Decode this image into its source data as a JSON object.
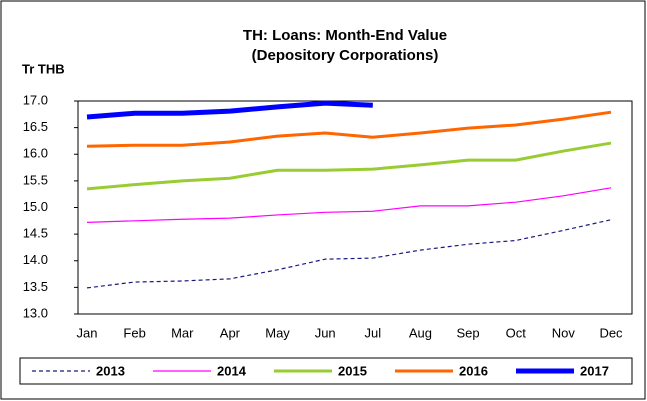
{
  "chart_data": {
    "type": "line",
    "title": [
      "TH: Loans: Month-End Value",
      "(Depository Corporations)"
    ],
    "y_label": "Tr THB",
    "categories": [
      "Jan",
      "Feb",
      "Mar",
      "Apr",
      "May",
      "Jun",
      "Jul",
      "Aug",
      "Sep",
      "Oct",
      "Nov",
      "Dec"
    ],
    "ylim": [
      13,
      17
    ],
    "yticks": [
      {
        "value": 13,
        "label": "13.0"
      },
      13.5,
      {
        "value": 14,
        "label": "14.0"
      },
      14.5,
      {
        "value": 15,
        "label": "15.0"
      },
      15.5,
      {
        "value": 16,
        "label": "16.0"
      },
      16.5,
      {
        "value": 17,
        "label": "17.0"
      }
    ],
    "legend": "bottom",
    "series": [
      {
        "name": "2013",
        "color": "#1a1a80",
        "width": 1.2,
        "dash": true,
        "values": [
          13.49,
          13.6,
          13.62,
          13.66,
          13.83,
          14.03,
          14.05,
          14.2,
          14.31,
          14.38,
          14.57,
          14.77
        ]
      },
      {
        "name": "2014",
        "color": "#ff00ff",
        "width": 1.2,
        "dash": false,
        "values": [
          14.72,
          14.75,
          14.78,
          14.8,
          14.86,
          14.91,
          14.93,
          15.03,
          15.03,
          15.1,
          15.22,
          15.37
        ]
      },
      {
        "name": "2015",
        "color": "#99cc33",
        "width": 3,
        "dash": false,
        "values": [
          15.35,
          15.43,
          15.5,
          15.55,
          15.7,
          15.7,
          15.72,
          15.8,
          15.89,
          15.89,
          16.06,
          16.21
        ]
      },
      {
        "name": "2016",
        "color": "#ff6600",
        "width": 3,
        "dash": false,
        "values": [
          16.15,
          16.17,
          16.17,
          16.23,
          16.34,
          16.4,
          16.32,
          16.4,
          16.49,
          16.55,
          16.66,
          16.79
        ]
      },
      {
        "name": "2017",
        "color": "#0000ff",
        "width": 5,
        "dash": false,
        "values": [
          16.7,
          16.77,
          16.77,
          16.81,
          16.89,
          16.96,
          16.92,
          null,
          null,
          null,
          null,
          null
        ]
      }
    ]
  }
}
